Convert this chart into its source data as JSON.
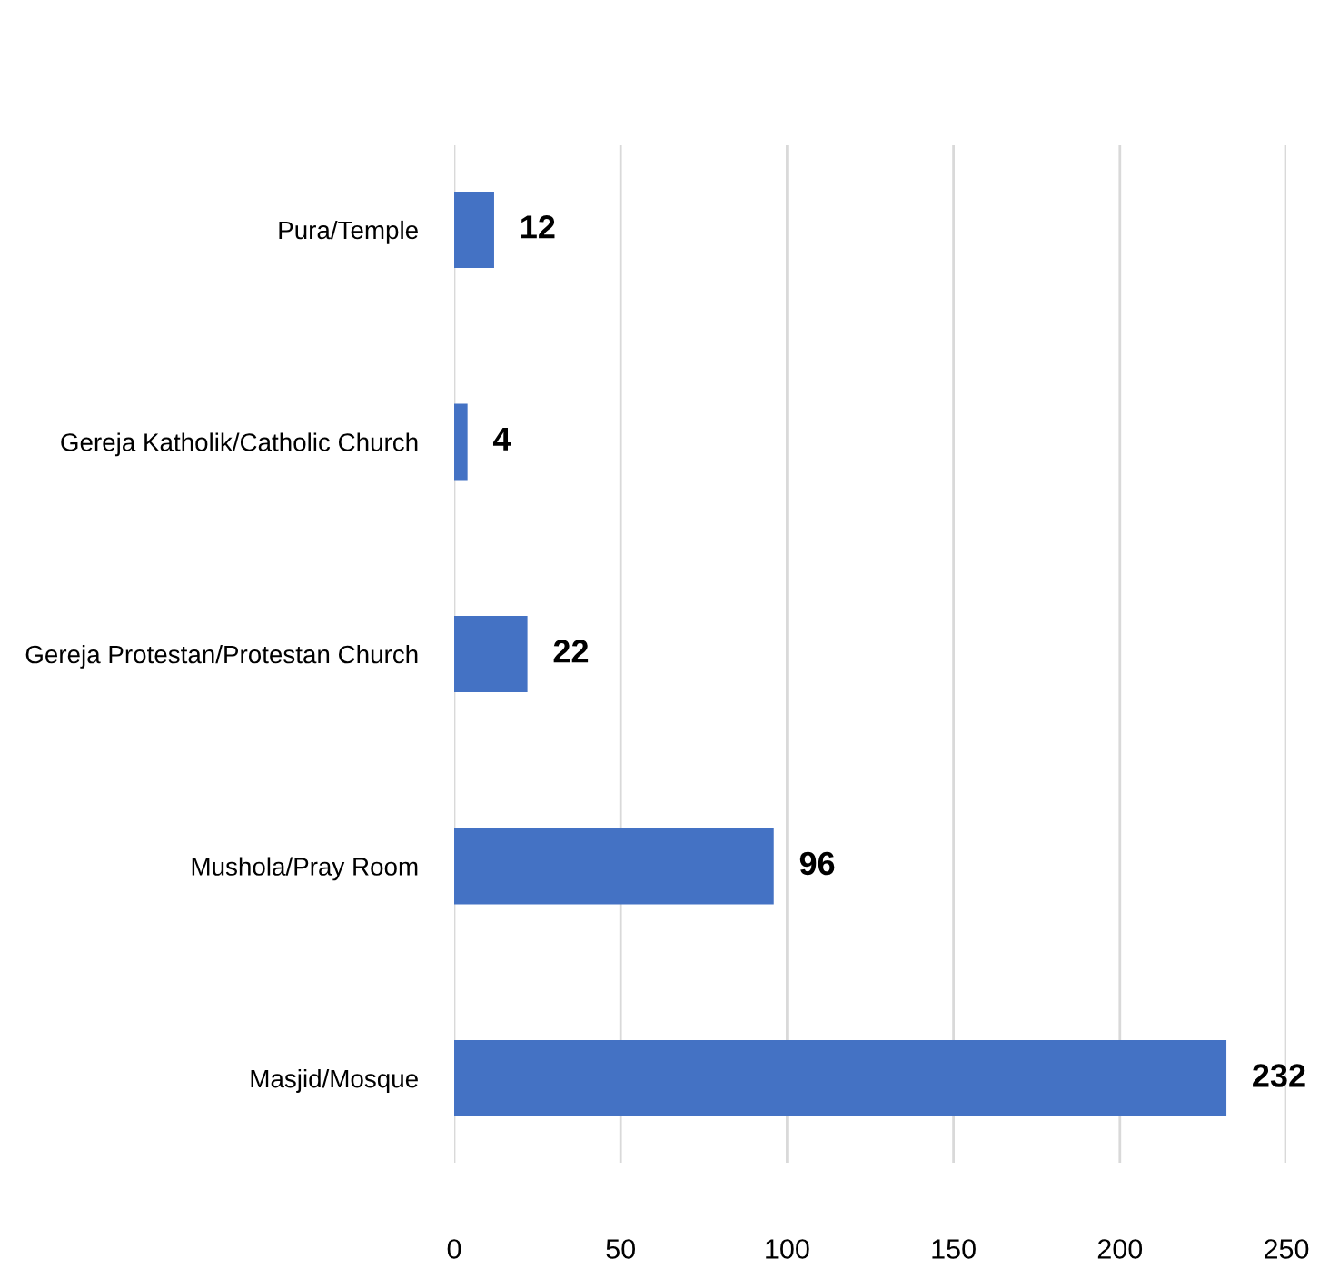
{
  "chart_data": {
    "type": "bar",
    "orientation": "horizontal",
    "categories": [
      "Pura/Temple",
      "Gereja Katholik/Catholic Church",
      "Gereja Protestan/Protestan Church",
      "Mushola/Pray Room",
      "Masjid/Mosque"
    ],
    "values": [
      12,
      4,
      22,
      96,
      232
    ],
    "color": "#4472c4",
    "xlim": [
      0,
      250
    ],
    "xticks": [
      0,
      50,
      100,
      150,
      200,
      250
    ],
    "grid": "x",
    "data_labels": true
  }
}
